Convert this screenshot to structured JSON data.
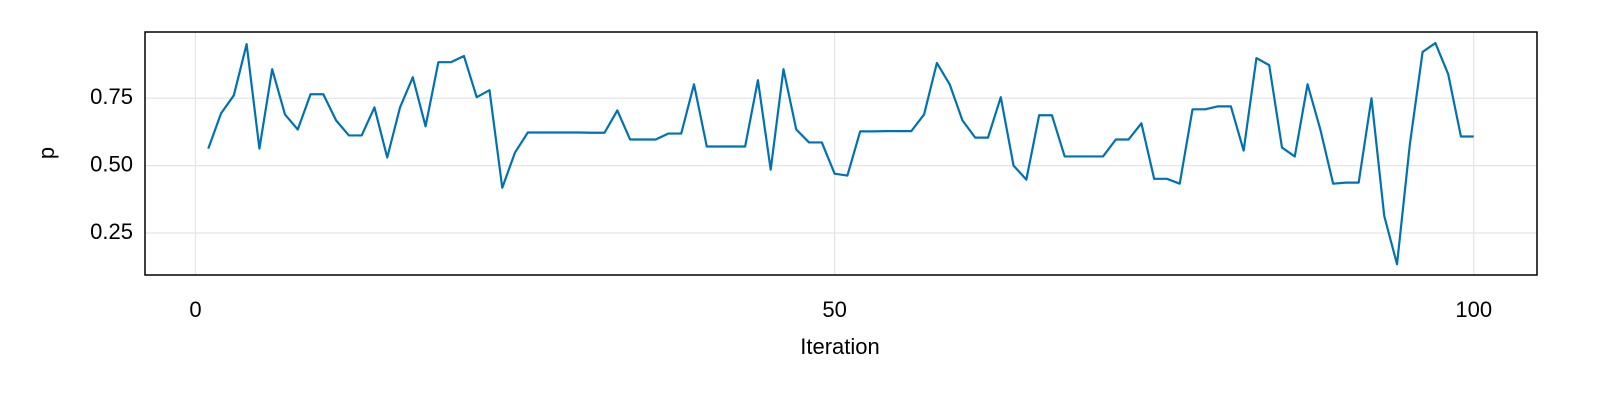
{
  "chart_data": {
    "type": "line",
    "xlabel": "Iteration",
    "ylabel": "p",
    "x": [
      1,
      2,
      3,
      4,
      5,
      6,
      7,
      8,
      9,
      10,
      11,
      12,
      13,
      14,
      15,
      16,
      17,
      18,
      19,
      20,
      21,
      22,
      23,
      24,
      25,
      26,
      27,
      28,
      29,
      30,
      31,
      32,
      33,
      34,
      35,
      36,
      37,
      38,
      39,
      40,
      41,
      42,
      43,
      44,
      45,
      46,
      47,
      48,
      49,
      50,
      51,
      52,
      53,
      54,
      55,
      56,
      57,
      58,
      59,
      60,
      61,
      62,
      63,
      64,
      65,
      66,
      67,
      68,
      69,
      70,
      71,
      72,
      73,
      74,
      75,
      76,
      77,
      78,
      79,
      80,
      81,
      82,
      83,
      84,
      85,
      86,
      87,
      88,
      89,
      90,
      91,
      92,
      93,
      94,
      95,
      96,
      97,
      98,
      99,
      100
    ],
    "values": [
      0.563,
      0.694,
      0.761,
      0.951,
      0.563,
      0.858,
      0.69,
      0.634,
      0.765,
      0.765,
      0.668,
      0.612,
      0.612,
      0.716,
      0.53,
      0.716,
      0.828,
      0.646,
      0.884,
      0.884,
      0.907,
      0.754,
      0.78,
      0.418,
      0.549,
      0.623,
      0.623,
      0.623,
      0.623,
      0.623,
      0.622,
      0.622,
      0.705,
      0.597,
      0.597,
      0.597,
      0.619,
      0.619,
      0.802,
      0.571,
      0.571,
      0.571,
      0.571,
      0.817,
      0.485,
      0.858,
      0.634,
      0.586,
      0.586,
      0.47,
      0.463,
      0.627,
      0.627,
      0.628,
      0.628,
      0.628,
      0.69,
      0.881,
      0.802,
      0.668,
      0.604,
      0.604,
      0.754,
      0.5,
      0.448,
      0.687,
      0.687,
      0.534,
      0.534,
      0.534,
      0.534,
      0.597,
      0.597,
      0.657,
      0.451,
      0.451,
      0.433,
      0.709,
      0.709,
      0.72,
      0.72,
      0.556,
      0.899,
      0.873,
      0.567,
      0.534,
      0.802,
      0.634,
      0.433,
      0.437,
      0.437,
      0.75,
      0.313,
      0.134,
      0.578,
      0.922,
      0.955,
      0.84,
      0.608,
      0.608
    ],
    "color": "#0072b2",
    "xlim": [
      -3.95,
      104.95
    ],
    "xticks": [
      0,
      50,
      100
    ],
    "ylim": [
      0.094,
      0.996
    ],
    "yticks": [
      0.25,
      {
        "value": 0.5,
        "label": "0.50"
      },
      0.75
    ],
    "grid": true
  }
}
